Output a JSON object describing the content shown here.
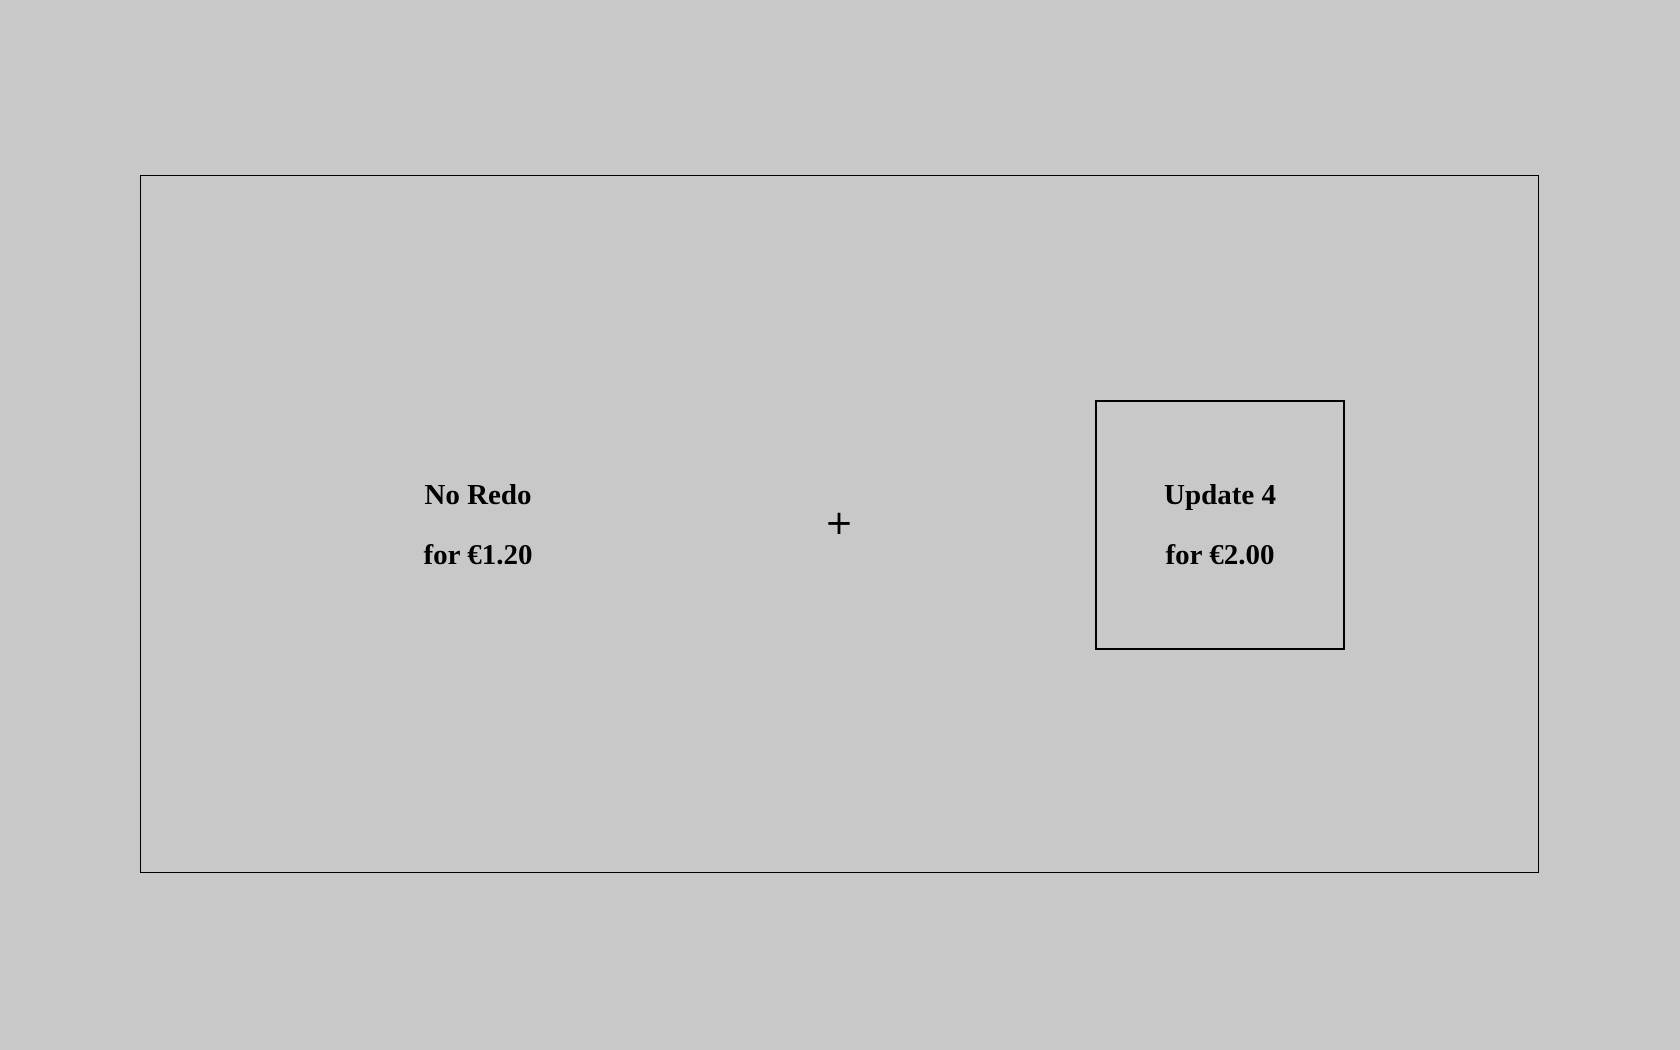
{
  "left_option": {
    "name": "No Redo",
    "price": "for €1.20"
  },
  "separator": "+",
  "right_option": {
    "name": "Update 4",
    "price": "for €2.00",
    "selected": true
  },
  "colors": {
    "background": "#c8c8c8",
    "border": "#000000",
    "text": "#000000"
  }
}
